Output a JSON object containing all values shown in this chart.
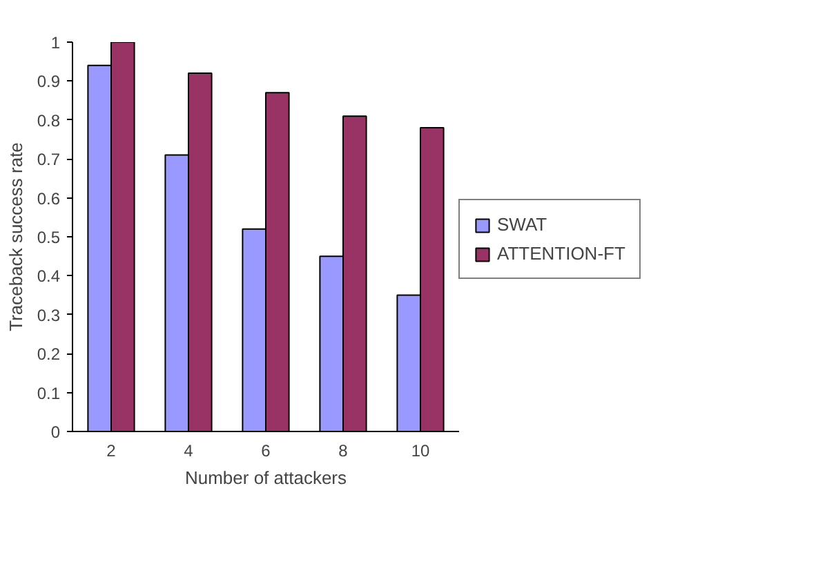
{
  "chart_data": {
    "type": "bar",
    "xlabel": "Number of attackers",
    "ylabel": "Traceback success rate",
    "categories": [
      "2",
      "4",
      "6",
      "8",
      "10"
    ],
    "series": [
      {
        "name": "SWAT",
        "color": "#9999ff",
        "values": [
          0.94,
          0.71,
          0.52,
          0.45,
          0.35
        ]
      },
      {
        "name": "ATTENTION-FT",
        "color": "#993366",
        "values": [
          1.0,
          0.92,
          0.87,
          0.81,
          0.78
        ]
      }
    ],
    "ylim": [
      0,
      1
    ],
    "yticks": [
      0,
      0.1,
      0.2,
      0.3,
      0.4,
      0.5,
      0.6,
      0.7,
      0.8,
      0.9,
      1
    ],
    "grid": false,
    "legend": "right"
  }
}
